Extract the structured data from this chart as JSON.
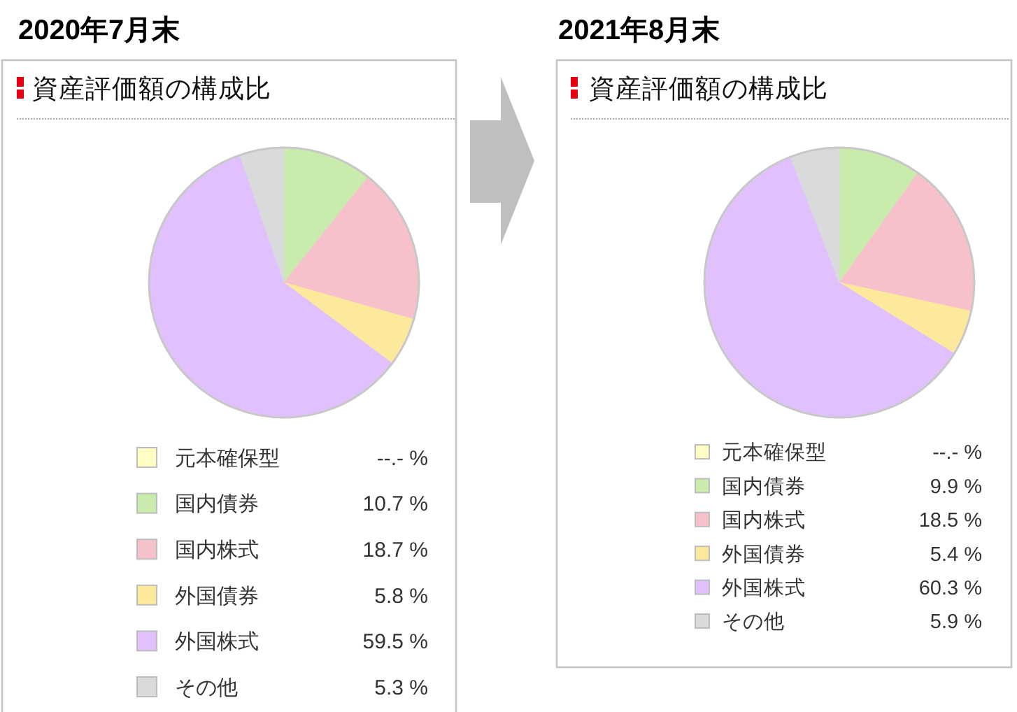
{
  "chart_data": [
    {
      "type": "pie",
      "title": "2020年7月末",
      "subtitle": "資産評価額の構成比",
      "categories": [
        "元本確保型",
        "国内債券",
        "国内株式",
        "外国債券",
        "外国株式",
        "その他"
      ],
      "values": [
        null,
        10.7,
        18.7,
        5.8,
        59.5,
        5.3
      ],
      "colors": [
        "#ffffc4",
        "#c9ebac",
        "#f7c1cc",
        "#fde99b",
        "#e0c1fd",
        "#d9dadc"
      ],
      "value_labels": [
        "--.- %",
        "10.7 %",
        "18.7 %",
        "5.8 %",
        "59.5 %",
        "5.3 %"
      ],
      "legend": "bottom"
    },
    {
      "type": "pie",
      "title": "2021年8月末",
      "subtitle": "資産評価額の構成比",
      "categories": [
        "元本確保型",
        "国内債券",
        "国内株式",
        "外国債券",
        "外国株式",
        "その他"
      ],
      "values": [
        null,
        9.9,
        18.5,
        5.4,
        60.3,
        5.9
      ],
      "colors": [
        "#ffffc4",
        "#c9ebac",
        "#f7c1cc",
        "#fde99b",
        "#e0c1fd",
        "#d9dadc"
      ],
      "value_labels": [
        "--.- %",
        "9.9 %",
        "18.5 %",
        "5.4 %",
        "60.3 %",
        "5.9 %"
      ],
      "legend": "bottom"
    }
  ]
}
